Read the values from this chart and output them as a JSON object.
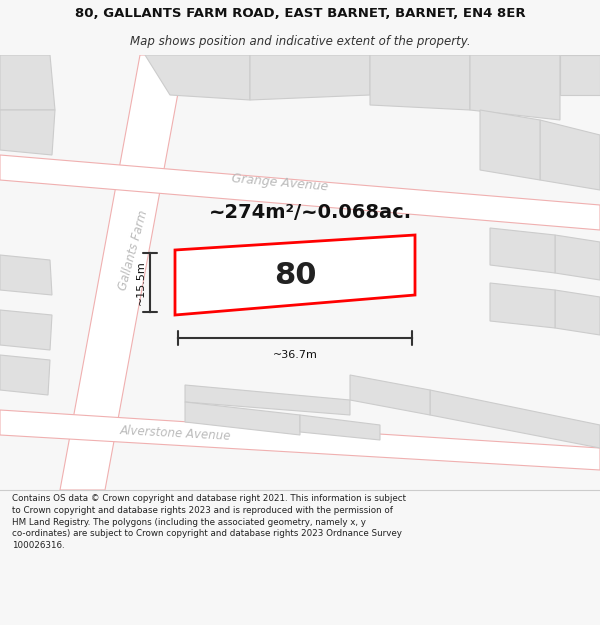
{
  "title_line1": "80, GALLANTS FARM ROAD, EAST BARNET, BARNET, EN4 8ER",
  "title_line2": "Map shows position and indicative extent of the property.",
  "footer_text": "Contains OS data © Crown copyright and database right 2021. This information is subject\nto Crown copyright and database rights 2023 and is reproduced with the permission of\nHM Land Registry. The polygons (including the associated geometry, namely x, y\nco-ordinates) are subject to Crown copyright and database rights 2023 Ordnance Survey\n100026316.",
  "fig_bg": "#f7f7f7",
  "map_bg": "#efefef",
  "road_fill": "#ffffff",
  "road_edge": "#f0b0b0",
  "block_fill": "#e0e0e0",
  "block_edge": "#cccccc",
  "highlight_fill": "#ffffff",
  "highlight_edge": "#ff0000",
  "street_color": "#bbbbbb",
  "dim_color": "#333333",
  "area_text": "~274m²/~0.068ac.",
  "number_text": "80",
  "dim_width": "~36.7m",
  "dim_height": "~15.5m",
  "grange_label": "Grange Avenue",
  "gallants_label": "Gallants Farm",
  "alverstone_label": "Alverstone Avenue"
}
